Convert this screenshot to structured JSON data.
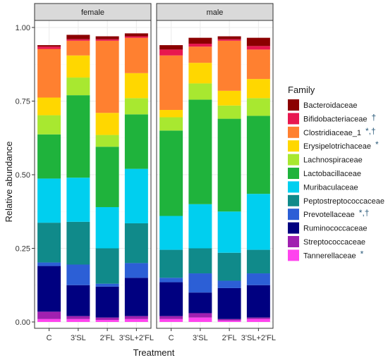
{
  "chart_data": {
    "type": "bar",
    "stacked": true,
    "xlabel": "Treatment",
    "ylabel": "Relative abundance",
    "ylim": [
      0,
      1.0
    ],
    "yticks": [
      "0.00",
      "0.25",
      "0.50",
      "0.75",
      "1.00"
    ],
    "grid": true,
    "legend_position": "right",
    "legend_title": "Family",
    "categories": [
      "C",
      "3'SL",
      "2'FL",
      "3'SL+2'FL"
    ],
    "families": [
      {
        "name": "Bacteroidaceae",
        "sig": "",
        "color": "#8b0000"
      },
      {
        "name": "Bifidobacteriaceae",
        "sig": "†",
        "color": "#e8174f"
      },
      {
        "name": "Clostridiaceae_1",
        "sig": "*,†",
        "color": "#ff8030"
      },
      {
        "name": "Erysipelotrichaceae",
        "sig": "*",
        "color": "#ffd700"
      },
      {
        "name": "Lachnospiraceae",
        "sig": "",
        "color": "#a8e830"
      },
      {
        "name": "Lactobacillaceae",
        "sig": "",
        "color": "#1fb33c"
      },
      {
        "name": "Muribaculaceae",
        "sig": "",
        "color": "#00cfef"
      },
      {
        "name": "Peptostreptococcaceae",
        "sig": "",
        "color": "#108a8a"
      },
      {
        "name": "Prevotellaceae",
        "sig": "*,†",
        "color": "#2c5fd6"
      },
      {
        "name": "Ruminococcaceae",
        "sig": "",
        "color": "#000080"
      },
      {
        "name": "Streptococcaceae",
        "sig": "",
        "color": "#a020b0"
      },
      {
        "name": "Tannerellaceae",
        "sig": "*",
        "color": "#ff44ee"
      }
    ],
    "panels": [
      {
        "label": "female",
        "values": {
          "C": [
            0.005,
            0.008,
            0.165,
            0.06,
            0.065,
            0.15,
            0.15,
            0.135,
            0.012,
            0.155,
            0.025,
            0.01
          ],
          "3'SL": [
            0.015,
            0.005,
            0.05,
            0.075,
            0.06,
            0.28,
            0.15,
            0.145,
            0.07,
            0.105,
            0.01,
            0.01
          ],
          "2'FL": [
            0.01,
            0.005,
            0.245,
            0.075,
            0.04,
            0.205,
            0.14,
            0.12,
            0.01,
            0.105,
            0.008,
            0.007
          ],
          "3'SL+2'FL": [
            0.01,
            0.005,
            0.12,
            0.085,
            0.055,
            0.185,
            0.185,
            0.135,
            0.05,
            0.13,
            0.01,
            0.01
          ]
        }
      },
      {
        "label": "male",
        "values": {
          "C": [
            0.015,
            0.02,
            0.185,
            0.025,
            0.045,
            0.29,
            0.115,
            0.095,
            0.015,
            0.115,
            0.01,
            0.01
          ],
          "3'SL": [
            0.02,
            0.01,
            0.055,
            0.07,
            0.055,
            0.355,
            0.15,
            0.085,
            0.065,
            0.07,
            0.015,
            0.015
          ],
          "2'FL": [
            0.01,
            0.005,
            0.17,
            0.05,
            0.045,
            0.315,
            0.14,
            0.095,
            0.025,
            0.105,
            0.005,
            0.005
          ],
          "3'SL+2'FL": [
            0.028,
            0.012,
            0.1,
            0.065,
            0.06,
            0.265,
            0.19,
            0.08,
            0.04,
            0.11,
            0.005,
            0.01
          ]
        }
      }
    ]
  }
}
